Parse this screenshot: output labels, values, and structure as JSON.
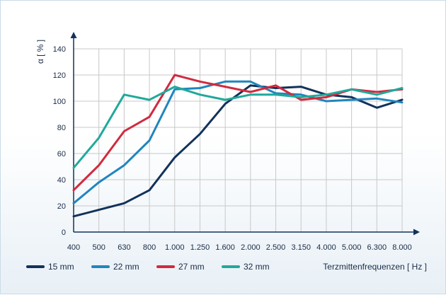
{
  "chart_data": {
    "type": "line",
    "ylabel": "α [ % ]",
    "xlabel": "Terzmittenfrequenzen [ Hz ]",
    "categories": [
      "400",
      "500",
      "630",
      "800",
      "1.000",
      "1.250",
      "1.600",
      "2.000",
      "2.500",
      "3.150",
      "4.000",
      "5.000",
      "6.300",
      "8.000"
    ],
    "y_ticks": [
      0,
      20,
      40,
      60,
      80,
      100,
      120,
      140
    ],
    "ylim": [
      0,
      150
    ],
    "grid": true,
    "legend_position": "bottom",
    "series": [
      {
        "name": "15 mm",
        "color": "#12325a",
        "values": [
          12,
          17,
          22,
          32,
          57,
          75,
          98,
          112,
          110,
          111,
          105,
          103,
          95,
          101
        ]
      },
      {
        "name": "22 mm",
        "color": "#1f86bd",
        "values": [
          22,
          38,
          51,
          70,
          109,
          110,
          115,
          115,
          106,
          105,
          100,
          101,
          102,
          99
        ]
      },
      {
        "name": "27 mm",
        "color": "#d12a3f",
        "values": [
          32,
          51,
          77,
          88,
          120,
          115,
          111,
          107,
          112,
          101,
          103,
          109,
          107,
          109
        ]
      },
      {
        "name": "32 mm",
        "color": "#1fa99b",
        "values": [
          49,
          72,
          105,
          101,
          111,
          105,
          101,
          105,
          105,
          103,
          105,
          109,
          105,
          110
        ]
      }
    ]
  }
}
